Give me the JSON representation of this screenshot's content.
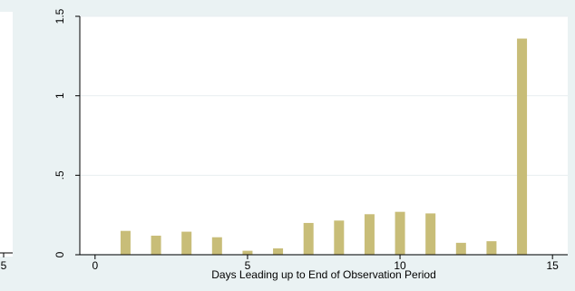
{
  "chart_data": {
    "type": "bar",
    "x": [
      1,
      2,
      3,
      4,
      5,
      6,
      7,
      8,
      9,
      10,
      11,
      12,
      13,
      14
    ],
    "values": [
      0.15,
      0.12,
      0.145,
      0.11,
      0.025,
      0.04,
      0.2,
      0.215,
      0.255,
      0.27,
      0.26,
      0.075,
      0.085,
      1.36
    ],
    "title": "",
    "xlabel": "Days Leading up to End of Observation Period",
    "ylabel": "",
    "xlim": [
      -0.5,
      15.5
    ],
    "ylim": [
      0,
      1.5
    ],
    "xticks": [
      0,
      5,
      10,
      15
    ],
    "xtick_labels": [
      "0",
      "5",
      "10",
      "15"
    ],
    "yticks": [
      0,
      0.5,
      1,
      1.5
    ],
    "ytick_labels": [
      "0",
      ".5",
      "1",
      "1.5"
    ],
    "left_cropped_tick_label": "5",
    "grid": true,
    "colors": {
      "bar": "#c8bd78",
      "outer_background": "#eaf2f3",
      "plot_background": "#ffffff",
      "grid": "#e8eef0",
      "axis": "#000000"
    }
  }
}
